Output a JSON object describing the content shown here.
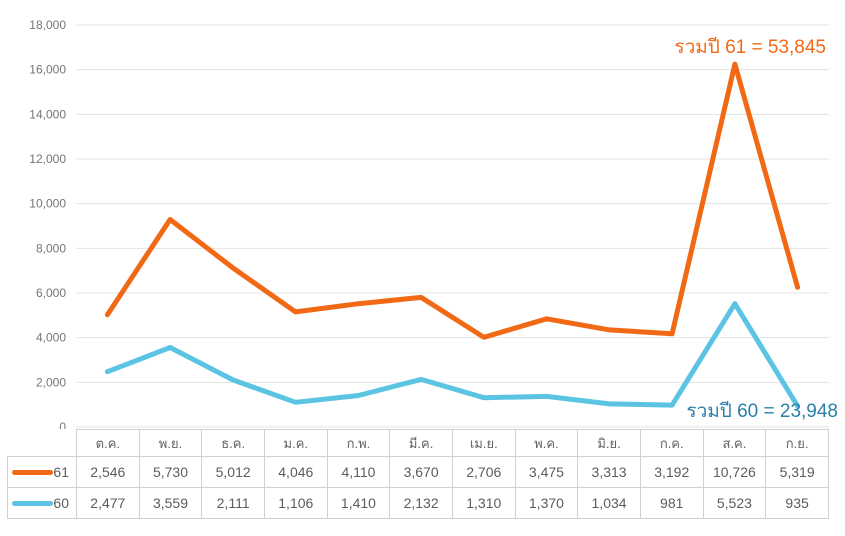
{
  "chart_data": {
    "type": "line",
    "stacked": true,
    "title": "",
    "xlabel": "",
    "ylabel": "",
    "grid": true,
    "legend_position": "table-left",
    "categories": [
      "ต.ค.",
      "พ.ย.",
      "ธ.ค.",
      "ม.ค.",
      "ก.พ.",
      "มี.ค.",
      "เม.ย.",
      "พ.ค.",
      "มิ.ย.",
      "ก.ค.",
      "ส.ค.",
      "ก.ย."
    ],
    "series": [
      {
        "name": "61",
        "color": "#F26915",
        "values": [
          2546,
          5730,
          5012,
          4046,
          4110,
          3670,
          2706,
          3475,
          3313,
          3192,
          10726,
          5319
        ],
        "total": 53845,
        "annotation": "รวมปี 61 = 53,845",
        "annotation_color": "#F26915"
      },
      {
        "name": "60",
        "color": "#5BC4E3",
        "values": [
          2477,
          3559,
          2111,
          1106,
          1410,
          2132,
          1310,
          1370,
          1034,
          981,
          5523,
          935
        ],
        "total": 23948,
        "annotation": "รวมปี 60 = 23,948",
        "annotation_color": "#2980A9"
      }
    ],
    "ylim": [
      0,
      18000
    ],
    "ytick_step": 2000,
    "y_ticks": [
      "0",
      "2,000",
      "4,000",
      "6,000",
      "8,000",
      "10,000",
      "12,000",
      "14,000",
      "16,000",
      "18,000"
    ]
  },
  "styles": {
    "gridline_color": "#E3E3E3",
    "tick_label_color": "#757575",
    "table_border_color": "#d2d0d0",
    "table_text_color": "#5c5c5c"
  }
}
